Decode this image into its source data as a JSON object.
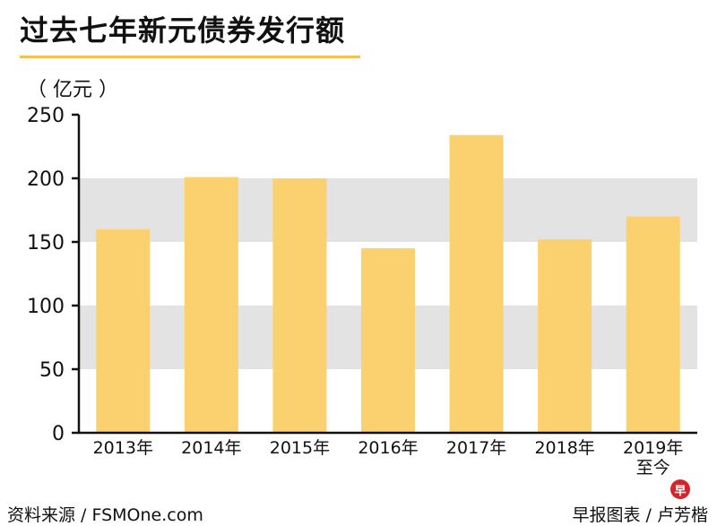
{
  "header": {
    "title": "过去七年新元债券发行额",
    "unit": "（ 亿元 ）"
  },
  "footer": {
    "source": "资料来源 / FSMOne.com",
    "credit": "早报图表 / 卢芳楷",
    "logo_text": "早"
  },
  "colors": {
    "bar": "#fbd06e",
    "band": "#e3e3e3",
    "accent": "#f2c14e",
    "axis": "#111111",
    "logo": "#d4252c"
  },
  "chart_data": {
    "type": "bar",
    "title": "过去七年新元债券发行额",
    "ylabel": "（ 亿元 ）",
    "xlabel": "",
    "ylim": [
      0,
      250
    ],
    "yticks": [
      0,
      50,
      100,
      150,
      200,
      250
    ],
    "categories": [
      [
        "2013年"
      ],
      [
        "2014年"
      ],
      [
        "2015年"
      ],
      [
        "2016年"
      ],
      [
        "2017年"
      ],
      [
        "2018年"
      ],
      [
        "2019年",
        "至今"
      ]
    ],
    "values": [
      160,
      201,
      200,
      145,
      234,
      152,
      170
    ],
    "shaded_bands": [
      [
        50,
        100
      ],
      [
        150,
        200
      ]
    ],
    "grid": false,
    "legend": "none"
  }
}
